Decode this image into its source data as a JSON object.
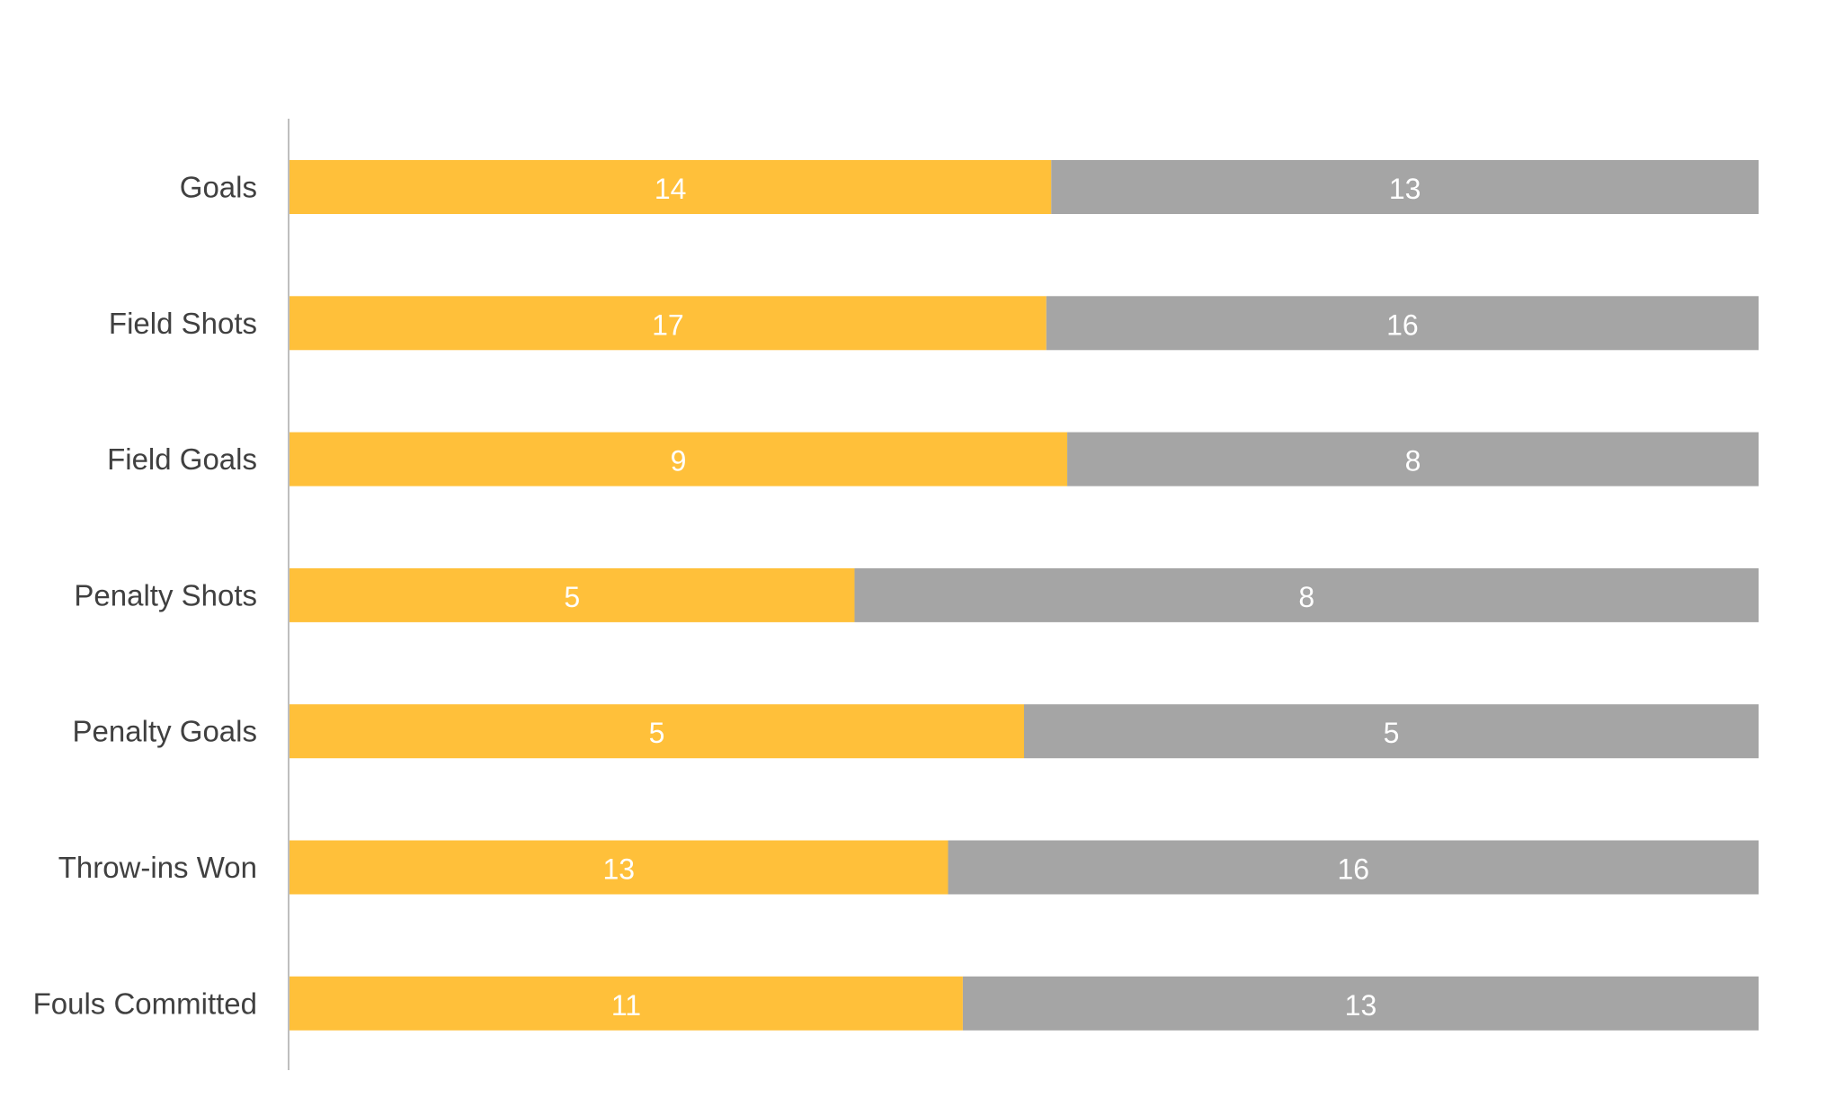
{
  "chart_data": {
    "type": "bar",
    "orientation": "horizontal",
    "stacking": "percent",
    "categories": [
      "Goals",
      "Field Shots",
      "Field Goals",
      "Penalty Shots",
      "Penalty Goals",
      "Throw-ins Won",
      "Fouls Committed"
    ],
    "series": [
      {
        "color": "#FFC03A",
        "values": [
          14,
          17,
          9,
          5,
          5,
          13,
          11
        ]
      },
      {
        "color": "#A5A5A5",
        "values": [
          13,
          16,
          8,
          8,
          5,
          16,
          13
        ]
      }
    ],
    "title": "",
    "xlabel": "",
    "ylabel": "",
    "xlim": [
      0,
      100
    ],
    "grid": false,
    "legend": "none",
    "axis_color": "#BFBFBF"
  }
}
